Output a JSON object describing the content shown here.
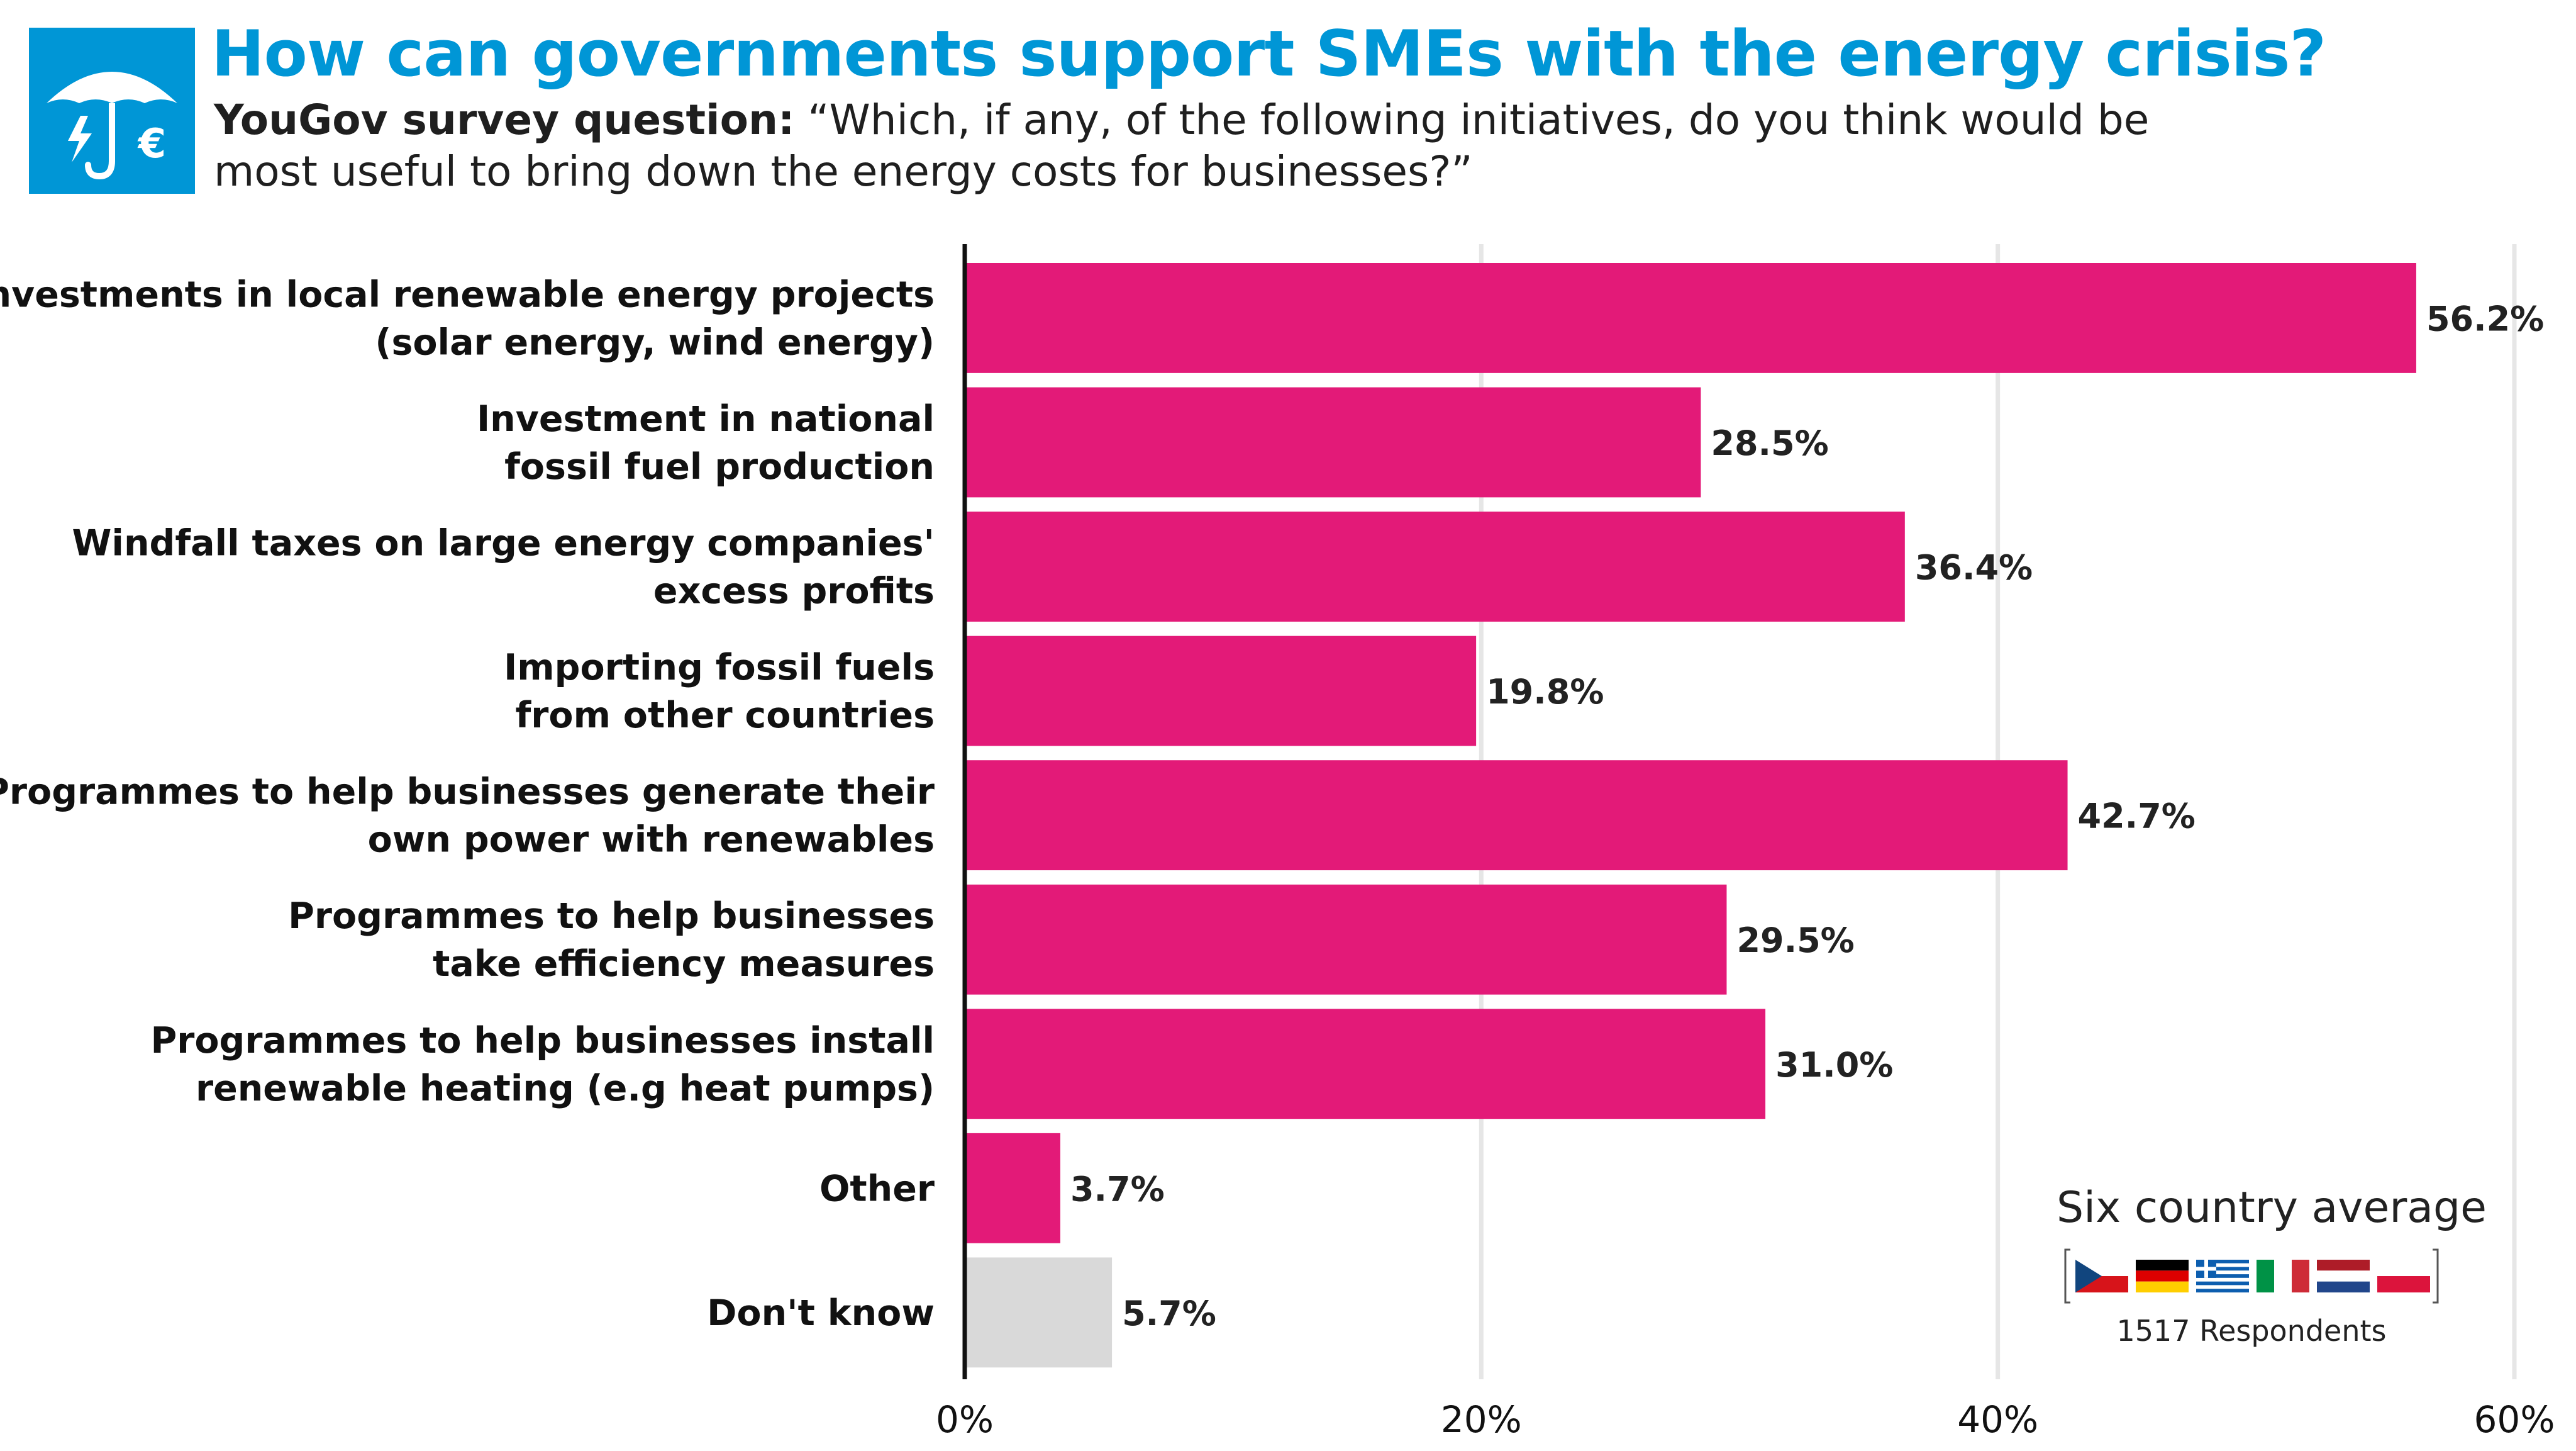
{
  "header": {
    "title": "How can governments support SMEs with the energy crisis?",
    "subtitle_lead": "YouGov survey question:",
    "subtitle_text": "“Which, if any, of the following initiatives, do you think would be most useful to bring down the energy costs for businesses?”",
    "logo_icon": "umbrella-euro-icon"
  },
  "legend": {
    "title": "Six country average",
    "respondents": "1517 Respondents",
    "flags": [
      "Czech Republic",
      "Germany",
      "Greece",
      "Italy",
      "Netherlands",
      "Poland"
    ]
  },
  "colors": {
    "accent_bar": "#E31A78",
    "dont_know_bar": "#D9D9D9",
    "title": "#0096D6",
    "grid": "#E6E6E6"
  },
  "chart_data": {
    "type": "bar",
    "orientation": "horizontal",
    "categories": [
      [
        "Investments in local renewable energy projects",
        "(solar energy, wind energy)"
      ],
      [
        "Investment in national",
        "fossil fuel production"
      ],
      [
        "Windfall taxes on large energy companies'",
        "excess profits"
      ],
      [
        "Importing fossil fuels",
        "from other countries"
      ],
      [
        "Programmes to help businesses generate their",
        "own power with renewables"
      ],
      [
        "Programmes to help businesses",
        "take efficiency measures"
      ],
      [
        "Programmes to help businesses install",
        "renewable heating (e.g heat pumps)"
      ],
      [
        "Other"
      ],
      [
        "Don't know"
      ]
    ],
    "values": [
      56.2,
      28.5,
      36.4,
      19.8,
      42.7,
      29.5,
      31.0,
      3.7,
      5.7
    ],
    "value_labels": [
      "56.2%",
      "28.5%",
      "36.4%",
      "19.8%",
      "42.7%",
      "29.5%",
      "31.0%",
      "3.7%",
      "5.7%"
    ],
    "xlim": [
      0,
      60
    ],
    "xticks": [
      0,
      20,
      40,
      60
    ],
    "xtick_labels": [
      "0%",
      "20%",
      "40%",
      "60%"
    ],
    "grid": true,
    "legend_position": "bottom-right"
  }
}
